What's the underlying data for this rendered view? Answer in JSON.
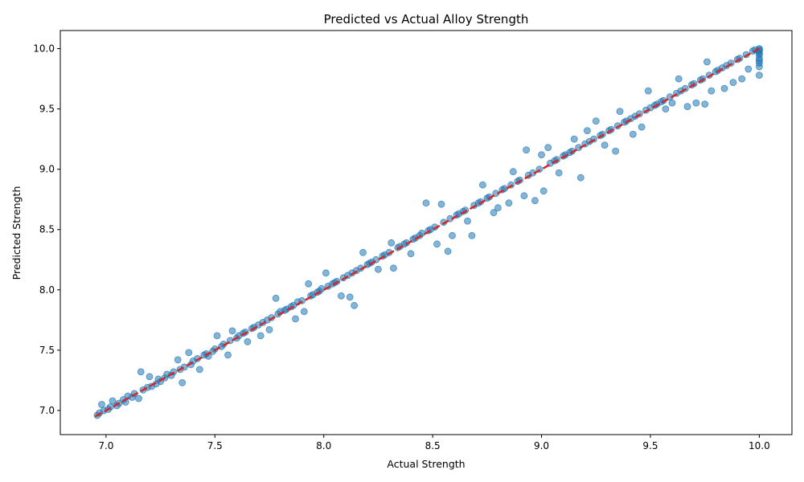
{
  "chart_data": {
    "type": "scatter",
    "title": "Predicted vs Actual Alloy Strength",
    "xlabel": "Actual Strength",
    "ylabel": "Predicted Strength",
    "xlim": [
      6.79,
      10.15
    ],
    "ylim": [
      6.8,
      10.15
    ],
    "xticks": [
      7.0,
      7.5,
      8.0,
      8.5,
      9.0,
      9.5,
      10.0
    ],
    "yticks": [
      7.0,
      7.5,
      8.0,
      8.5,
      9.0,
      9.5,
      10.0
    ],
    "xtick_labels": [
      "7.0",
      "7.5",
      "8.0",
      "8.5",
      "9.0",
      "9.5",
      "10.0"
    ],
    "ytick_labels": [
      "7.0",
      "7.5",
      "8.0",
      "8.5",
      "9.0",
      "9.5",
      "10.0"
    ],
    "grid": false,
    "point_color": "#1f77b4",
    "point_alpha": 0.55,
    "reference_line": {
      "style": "dashed",
      "color": "#d62728",
      "from": [
        6.95,
        6.95
      ],
      "to": [
        10.0,
        10.0
      ]
    },
    "points": [
      [
        6.96,
        6.96
      ],
      [
        6.97,
        6.98
      ],
      [
        6.98,
        7.05
      ],
      [
        6.99,
        7.0
      ],
      [
        7.01,
        7.01
      ],
      [
        7.02,
        7.03
      ],
      [
        7.03,
        7.08
      ],
      [
        7.05,
        7.04
      ],
      [
        7.06,
        7.06
      ],
      [
        7.08,
        7.09
      ],
      [
        7.09,
        7.07
      ],
      [
        7.1,
        7.12
      ],
      [
        7.12,
        7.11
      ],
      [
        7.13,
        7.14
      ],
      [
        7.15,
        7.1
      ],
      [
        7.16,
        7.32
      ],
      [
        7.17,
        7.17
      ],
      [
        7.19,
        7.19
      ],
      [
        7.2,
        7.28
      ],
      [
        7.21,
        7.2
      ],
      [
        7.23,
        7.22
      ],
      [
        7.24,
        7.26
      ],
      [
        7.25,
        7.24
      ],
      [
        7.27,
        7.27
      ],
      [
        7.28,
        7.3
      ],
      [
        7.3,
        7.29
      ],
      [
        7.31,
        7.32
      ],
      [
        7.33,
        7.42
      ],
      [
        7.34,
        7.34
      ],
      [
        7.35,
        7.23
      ],
      [
        7.36,
        7.36
      ],
      [
        7.38,
        7.48
      ],
      [
        7.39,
        7.38
      ],
      [
        7.4,
        7.41
      ],
      [
        7.42,
        7.43
      ],
      [
        7.43,
        7.34
      ],
      [
        7.45,
        7.46
      ],
      [
        7.46,
        7.47
      ],
      [
        7.47,
        7.45
      ],
      [
        7.49,
        7.49
      ],
      [
        7.5,
        7.51
      ],
      [
        7.51,
        7.62
      ],
      [
        7.53,
        7.53
      ],
      [
        7.54,
        7.55
      ],
      [
        7.56,
        7.46
      ],
      [
        7.57,
        7.58
      ],
      [
        7.58,
        7.66
      ],
      [
        7.6,
        7.6
      ],
      [
        7.61,
        7.62
      ],
      [
        7.63,
        7.64
      ],
      [
        7.64,
        7.65
      ],
      [
        7.65,
        7.57
      ],
      [
        7.67,
        7.68
      ],
      [
        7.68,
        7.69
      ],
      [
        7.7,
        7.71
      ],
      [
        7.71,
        7.62
      ],
      [
        7.72,
        7.73
      ],
      [
        7.74,
        7.75
      ],
      [
        7.75,
        7.67
      ],
      [
        7.76,
        7.77
      ],
      [
        7.78,
        7.93
      ],
      [
        7.79,
        7.8
      ],
      [
        7.8,
        7.82
      ],
      [
        7.82,
        7.83
      ],
      [
        7.83,
        7.84
      ],
      [
        7.85,
        7.86
      ],
      [
        7.86,
        7.87
      ],
      [
        7.87,
        7.76
      ],
      [
        7.88,
        7.9
      ],
      [
        7.9,
        7.91
      ],
      [
        7.91,
        7.82
      ],
      [
        7.93,
        8.05
      ],
      [
        7.94,
        7.95
      ],
      [
        7.95,
        7.96
      ],
      [
        7.97,
        7.98
      ],
      [
        7.98,
        7.99
      ],
      [
        7.99,
        8.01
      ],
      [
        8.01,
        8.14
      ],
      [
        8.02,
        8.03
      ],
      [
        8.04,
        8.05
      ],
      [
        8.05,
        8.06
      ],
      [
        8.06,
        8.07
      ],
      [
        8.08,
        7.95
      ],
      [
        8.09,
        8.1
      ],
      [
        8.11,
        8.12
      ],
      [
        8.12,
        7.94
      ],
      [
        8.13,
        8.14
      ],
      [
        8.14,
        7.87
      ],
      [
        8.15,
        8.16
      ],
      [
        8.17,
        8.18
      ],
      [
        8.18,
        8.31
      ],
      [
        8.2,
        8.21
      ],
      [
        8.21,
        8.22
      ],
      [
        8.22,
        8.23
      ],
      [
        8.24,
        8.25
      ],
      [
        8.25,
        8.17
      ],
      [
        8.27,
        8.28
      ],
      [
        8.28,
        8.29
      ],
      [
        8.3,
        8.31
      ],
      [
        8.31,
        8.39
      ],
      [
        8.32,
        8.18
      ],
      [
        8.34,
        8.35
      ],
      [
        8.35,
        8.36
      ],
      [
        8.37,
        8.38
      ],
      [
        8.38,
        8.39
      ],
      [
        8.4,
        8.3
      ],
      [
        8.41,
        8.42
      ],
      [
        8.42,
        8.43
      ],
      [
        8.44,
        8.45
      ],
      [
        8.45,
        8.47
      ],
      [
        8.47,
        8.72
      ],
      [
        8.48,
        8.49
      ],
      [
        8.49,
        8.5
      ],
      [
        8.51,
        8.52
      ],
      [
        8.52,
        8.38
      ],
      [
        8.54,
        8.71
      ],
      [
        8.55,
        8.56
      ],
      [
        8.57,
        8.32
      ],
      [
        8.58,
        8.59
      ],
      [
        8.59,
        8.45
      ],
      [
        8.61,
        8.62
      ],
      [
        8.62,
        8.63
      ],
      [
        8.64,
        8.65
      ],
      [
        8.65,
        8.66
      ],
      [
        8.66,
        8.57
      ],
      [
        8.68,
        8.45
      ],
      [
        8.69,
        8.7
      ],
      [
        8.71,
        8.72
      ],
      [
        8.72,
        8.73
      ],
      [
        8.73,
        8.87
      ],
      [
        8.75,
        8.76
      ],
      [
        8.76,
        8.77
      ],
      [
        8.78,
        8.64
      ],
      [
        8.79,
        8.8
      ],
      [
        8.8,
        8.68
      ],
      [
        8.82,
        8.83
      ],
      [
        8.83,
        8.84
      ],
      [
        8.85,
        8.72
      ],
      [
        8.86,
        8.87
      ],
      [
        8.87,
        8.98
      ],
      [
        8.89,
        8.9
      ],
      [
        8.9,
        8.91
      ],
      [
        8.92,
        8.78
      ],
      [
        8.93,
        9.16
      ],
      [
        8.94,
        8.95
      ],
      [
        8.96,
        8.97
      ],
      [
        8.97,
        8.74
      ],
      [
        8.99,
        9.0
      ],
      [
        9.0,
        9.12
      ],
      [
        9.01,
        8.82
      ],
      [
        9.03,
        9.18
      ],
      [
        9.04,
        9.05
      ],
      [
        9.06,
        9.07
      ],
      [
        9.07,
        9.08
      ],
      [
        9.08,
        8.97
      ],
      [
        9.1,
        9.11
      ],
      [
        9.11,
        9.12
      ],
      [
        9.13,
        9.14
      ],
      [
        9.14,
        9.15
      ],
      [
        9.15,
        9.25
      ],
      [
        9.17,
        9.18
      ],
      [
        9.18,
        8.93
      ],
      [
        9.2,
        9.21
      ],
      [
        9.21,
        9.32
      ],
      [
        9.22,
        9.23
      ],
      [
        9.24,
        9.25
      ],
      [
        9.25,
        9.4
      ],
      [
        9.27,
        9.28
      ],
      [
        9.28,
        9.29
      ],
      [
        9.29,
        9.2
      ],
      [
        9.31,
        9.32
      ],
      [
        9.32,
        9.33
      ],
      [
        9.34,
        9.15
      ],
      [
        9.35,
        9.36
      ],
      [
        9.36,
        9.48
      ],
      [
        9.38,
        9.39
      ],
      [
        9.39,
        9.4
      ],
      [
        9.41,
        9.42
      ],
      [
        9.42,
        9.29
      ],
      [
        9.43,
        9.44
      ],
      [
        9.45,
        9.46
      ],
      [
        9.46,
        9.35
      ],
      [
        9.48,
        9.49
      ],
      [
        9.49,
        9.65
      ],
      [
        9.5,
        9.51
      ],
      [
        9.52,
        9.53
      ],
      [
        9.53,
        9.54
      ],
      [
        9.55,
        9.56
      ],
      [
        9.56,
        9.57
      ],
      [
        9.57,
        9.5
      ],
      [
        9.59,
        9.6
      ],
      [
        9.6,
        9.55
      ],
      [
        9.62,
        9.63
      ],
      [
        9.63,
        9.75
      ],
      [
        9.64,
        9.65
      ],
      [
        9.66,
        9.67
      ],
      [
        9.67,
        9.52
      ],
      [
        9.69,
        9.7
      ],
      [
        9.7,
        9.71
      ],
      [
        9.71,
        9.55
      ],
      [
        9.73,
        9.74
      ],
      [
        9.74,
        9.75
      ],
      [
        9.75,
        9.54
      ],
      [
        9.76,
        9.89
      ],
      [
        9.77,
        9.78
      ],
      [
        9.78,
        9.65
      ],
      [
        9.8,
        9.81
      ],
      [
        9.81,
        9.82
      ],
      [
        9.83,
        9.84
      ],
      [
        9.84,
        9.67
      ],
      [
        9.85,
        9.86
      ],
      [
        9.87,
        9.88
      ],
      [
        9.88,
        9.72
      ],
      [
        9.9,
        9.91
      ],
      [
        9.91,
        9.92
      ],
      [
        9.92,
        9.75
      ],
      [
        9.94,
        9.95
      ],
      [
        9.95,
        9.83
      ],
      [
        9.97,
        9.98
      ],
      [
        9.98,
        9.99
      ],
      [
        10.0,
        10.0
      ],
      [
        10.0,
        9.98
      ],
      [
        10.0,
        9.95
      ],
      [
        10.0,
        9.92
      ],
      [
        10.0,
        9.9
      ],
      [
        10.0,
        9.88
      ],
      [
        10.0,
        9.85
      ],
      [
        10.0,
        9.78
      ],
      [
        10.0,
        9.96
      ],
      [
        10.0,
        9.99
      ]
    ]
  }
}
